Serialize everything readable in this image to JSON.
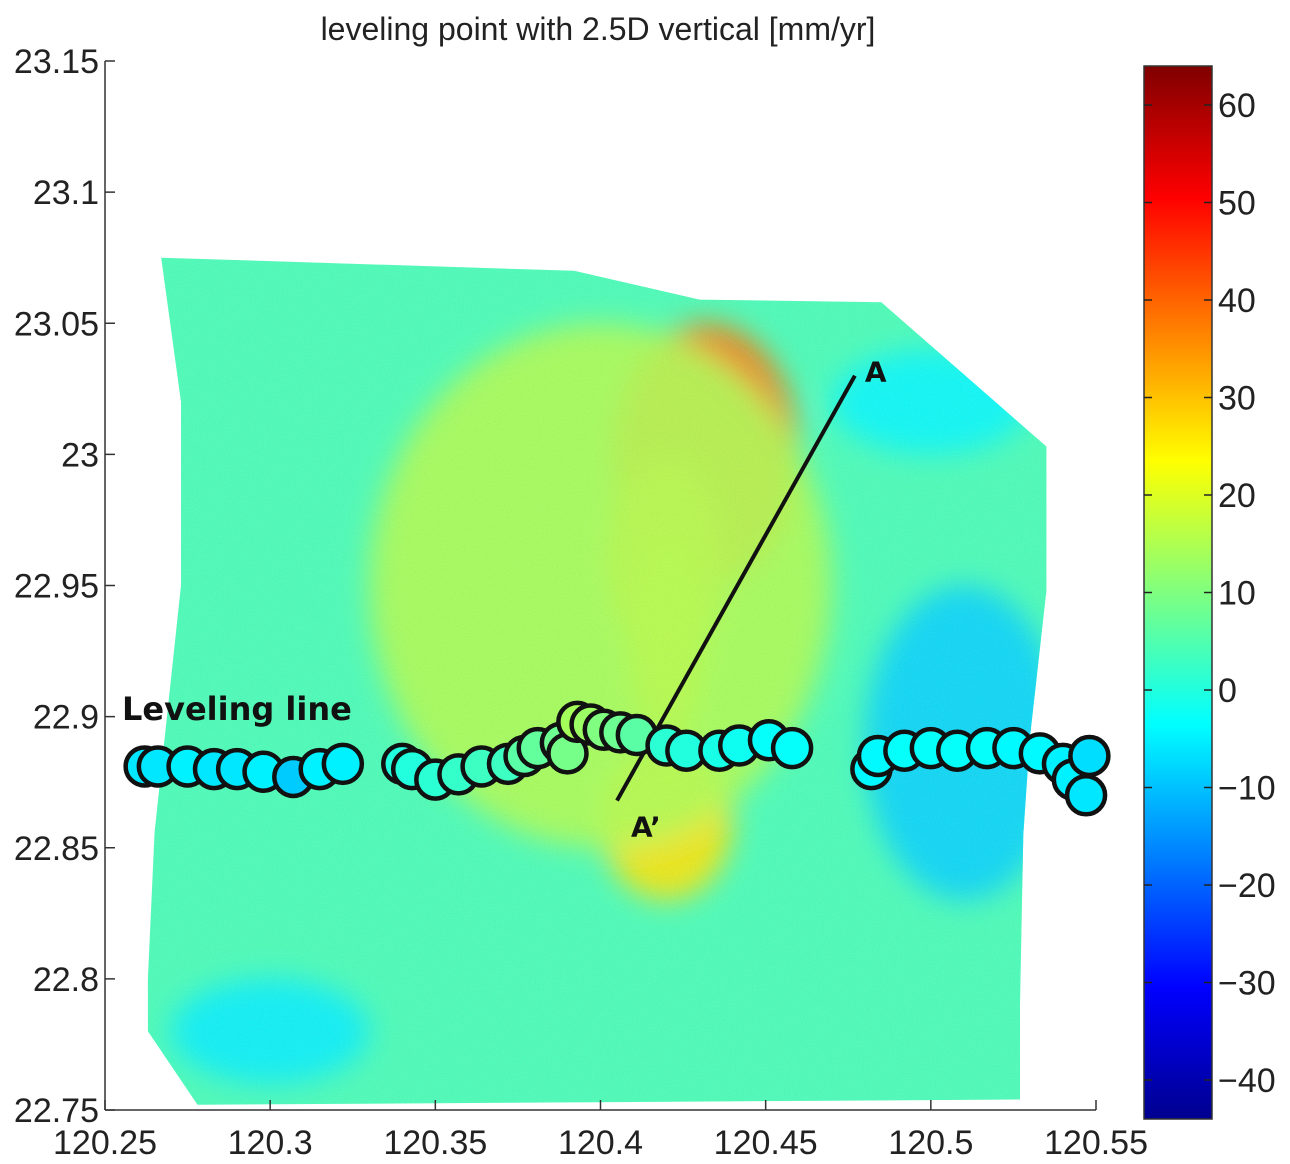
{
  "chart_data": {
    "type": "heatmap",
    "title": "leveling point with 2.5D vertical [mm/yr]",
    "xlabel": "",
    "ylabel": "",
    "xlim": [
      120.25,
      120.55
    ],
    "ylim": [
      22.75,
      23.15
    ],
    "x_ticks": [
      "120.25",
      "120.3",
      "120.35",
      "120.4",
      "120.45",
      "120.5",
      "120.55"
    ],
    "y_ticks": [
      "23.15",
      "23.1",
      "23.05",
      "23",
      "22.95",
      "22.9",
      "22.85",
      "22.8",
      "22.75"
    ],
    "colorbar": {
      "range": [
        -44,
        64
      ],
      "ticks": [
        "60",
        "50",
        "40",
        "30",
        "20",
        "10",
        "0",
        "−10",
        "−20",
        "−30",
        "−40"
      ],
      "colormap": "jet"
    },
    "field_extent": [
      [
        120.267,
        23.075
      ],
      [
        120.392,
        23.07
      ],
      [
        120.43,
        23.059
      ],
      [
        120.485,
        23.058
      ],
      [
        120.535,
        23.003
      ],
      [
        120.535,
        22.948
      ],
      [
        120.53,
        22.892
      ],
      [
        120.528,
        22.855
      ],
      [
        120.527,
        22.79
      ],
      [
        120.527,
        22.754
      ],
      [
        120.278,
        22.752
      ],
      [
        120.263,
        22.78
      ],
      [
        120.263,
        22.8
      ],
      [
        120.265,
        22.856
      ],
      [
        120.273,
        22.95
      ],
      [
        120.273,
        23.02
      ]
    ],
    "anomalies": [
      {
        "lon": 120.432,
        "lat": 23.0,
        "rlon": 0.028,
        "rlat": 0.05,
        "value": 38
      },
      {
        "lon": 120.42,
        "lat": 22.96,
        "rlon": 0.018,
        "rlat": 0.04,
        "value": 28
      },
      {
        "lon": 120.42,
        "lat": 22.93,
        "rlon": 0.012,
        "rlat": 0.04,
        "value": 24
      },
      {
        "lon": 120.42,
        "lat": 22.86,
        "rlon": 0.02,
        "rlat": 0.03,
        "value": 26
      },
      {
        "lon": 120.4,
        "lat": 22.95,
        "rlon": 0.07,
        "rlat": 0.1,
        "value": 15
      },
      {
        "lon": 120.51,
        "lat": 22.89,
        "rlon": 0.03,
        "rlat": 0.06,
        "value": -8
      },
      {
        "lon": 120.5,
        "lat": 23.02,
        "rlon": 0.03,
        "rlat": 0.02,
        "value": -4
      },
      {
        "lon": 120.3,
        "lat": 22.78,
        "rlon": 0.03,
        "rlat": 0.02,
        "value": -5
      }
    ],
    "profile_line": {
      "label_start": "A",
      "label_end": "A’",
      "start": [
        120.477,
        23.03
      ],
      "end": [
        120.405,
        22.868
      ]
    },
    "leveling_line_label": "Leveling line",
    "leveling_points": [
      {
        "lon": 120.262,
        "lat": 22.881,
        "value": -6
      },
      {
        "lon": 120.266,
        "lat": 22.881,
        "value": -6
      },
      {
        "lon": 120.275,
        "lat": 22.881,
        "value": -5
      },
      {
        "lon": 120.283,
        "lat": 22.88,
        "value": -6
      },
      {
        "lon": 120.29,
        "lat": 22.88,
        "value": -6
      },
      {
        "lon": 120.298,
        "lat": 22.879,
        "value": -5
      },
      {
        "lon": 120.307,
        "lat": 22.877,
        "value": -9
      },
      {
        "lon": 120.315,
        "lat": 22.88,
        "value": -5
      },
      {
        "lon": 120.322,
        "lat": 22.882,
        "value": -5
      },
      {
        "lon": 120.34,
        "lat": 22.882,
        "value": 0
      },
      {
        "lon": 120.343,
        "lat": 22.88,
        "value": 0
      },
      {
        "lon": 120.35,
        "lat": 22.876,
        "value": 1
      },
      {
        "lon": 120.357,
        "lat": 22.878,
        "value": 2
      },
      {
        "lon": 120.364,
        "lat": 22.881,
        "value": 3
      },
      {
        "lon": 120.372,
        "lat": 22.882,
        "value": 3
      },
      {
        "lon": 120.377,
        "lat": 22.885,
        "value": 6
      },
      {
        "lon": 120.381,
        "lat": 22.888,
        "value": 7
      },
      {
        "lon": 120.388,
        "lat": 22.89,
        "value": 8
      },
      {
        "lon": 120.39,
        "lat": 22.886,
        "value": 9
      },
      {
        "lon": 120.393,
        "lat": 22.898,
        "value": 14
      },
      {
        "lon": 120.397,
        "lat": 22.897,
        "value": 13
      },
      {
        "lon": 120.401,
        "lat": 22.895,
        "value": 10
      },
      {
        "lon": 120.406,
        "lat": 22.894,
        "value": 8
      },
      {
        "lon": 120.411,
        "lat": 22.893,
        "value": 6
      },
      {
        "lon": 120.42,
        "lat": 22.889,
        "value": 1
      },
      {
        "lon": 120.426,
        "lat": 22.887,
        "value": 0
      },
      {
        "lon": 120.436,
        "lat": 22.887,
        "value": -1
      },
      {
        "lon": 120.442,
        "lat": 22.889,
        "value": -2
      },
      {
        "lon": 120.451,
        "lat": 22.891,
        "value": -3
      },
      {
        "lon": 120.458,
        "lat": 22.888,
        "value": -3
      },
      {
        "lon": 120.482,
        "lat": 22.88,
        "value": -4
      },
      {
        "lon": 120.484,
        "lat": 22.885,
        "value": -4
      },
      {
        "lon": 120.492,
        "lat": 22.887,
        "value": -3
      },
      {
        "lon": 120.5,
        "lat": 22.888,
        "value": -3
      },
      {
        "lon": 120.508,
        "lat": 22.887,
        "value": -3
      },
      {
        "lon": 120.517,
        "lat": 22.888,
        "value": -3
      },
      {
        "lon": 120.525,
        "lat": 22.888,
        "value": -4
      },
      {
        "lon": 120.533,
        "lat": 22.886,
        "value": -4
      },
      {
        "lon": 120.54,
        "lat": 22.882,
        "value": -5
      },
      {
        "lon": 120.543,
        "lat": 22.876,
        "value": -5
      },
      {
        "lon": 120.547,
        "lat": 22.87,
        "value": -6
      },
      {
        "lon": 120.548,
        "lat": 22.885,
        "value": -7
      }
    ]
  }
}
